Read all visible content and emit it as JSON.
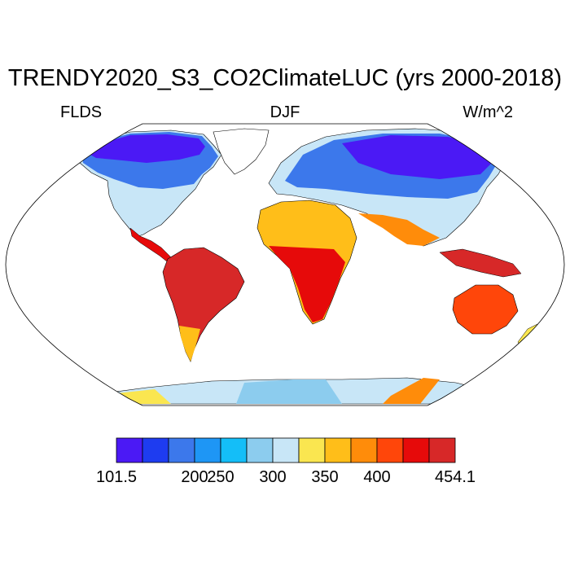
{
  "title": "TRENDY2020_S3_CO2ClimateLUC (yrs 2000-2018)",
  "left_label": "FLDS",
  "center_label": "DJF",
  "right_label": "W/m^2",
  "map": {
    "projection": "Robinson",
    "variable": "FLDS",
    "season": "DJF",
    "units": "W/m^2",
    "ocean_fill": "none",
    "coastlines": true
  },
  "colorbar": {
    "colors": [
      "#4b19f5",
      "#1e3cf0",
      "#3c78eb",
      "#1e96f5",
      "#14bef8",
      "#8cccee",
      "#c8e6f7",
      "#fae650",
      "#ffbe19",
      "#ff8c0a",
      "#ff460a",
      "#e60a0a",
      "#d72828"
    ],
    "labels": [
      {
        "text": "101.5",
        "edge": 0
      },
      {
        "text": "200",
        "edge": 3
      },
      {
        "text": "250",
        "edge": 4
      },
      {
        "text": "300",
        "edge": 6
      },
      {
        "text": "350",
        "edge": 8
      },
      {
        "text": "400",
        "edge": 10
      },
      {
        "text": "454.1",
        "edge": 13
      }
    ]
  }
}
